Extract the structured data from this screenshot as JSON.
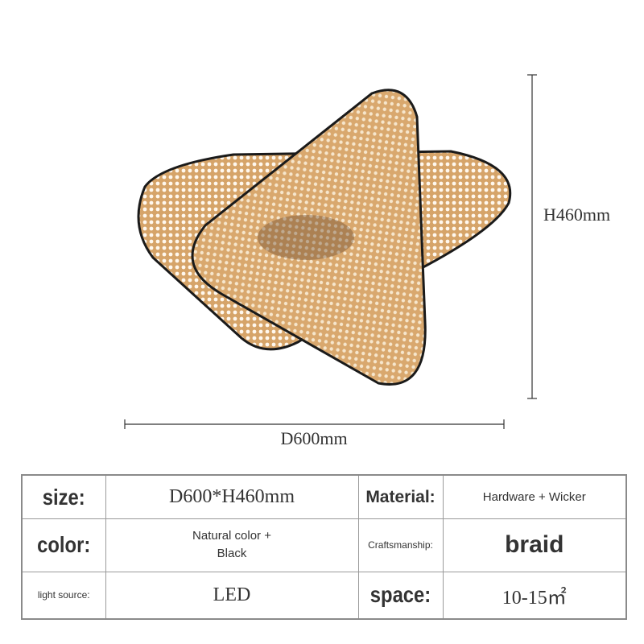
{
  "dimensions": {
    "height": "H460mm",
    "width": "D600mm"
  },
  "table": {
    "rows": [
      [
        "size:",
        "D600*H460mm",
        "Material:",
        "Hardware + Wicker"
      ],
      [
        "color:",
        "Natural color + Black",
        "Craftsmanship:",
        "braid"
      ],
      [
        "light source:",
        "LED",
        "space:",
        "10-15㎡"
      ]
    ]
  }
}
